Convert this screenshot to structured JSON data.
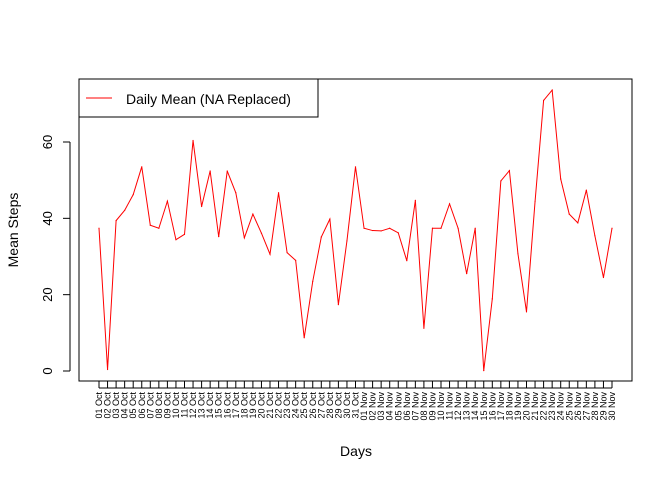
{
  "chart_data": {
    "type": "line",
    "title": "",
    "xlabel": "Days",
    "ylabel": "Mean Steps",
    "ylim": [
      0,
      73.6
    ],
    "yticks": [
      0,
      20,
      40,
      60
    ],
    "grid": false,
    "legend": {
      "position": "top-left",
      "entries": [
        {
          "label": "Daily Mean (NA Replaced)",
          "color": "#ff0000"
        }
      ]
    },
    "categories": [
      "01 Oct",
      "02 Oct",
      "03 Oct",
      "04 Oct",
      "05 Oct",
      "06 Oct",
      "07 Oct",
      "08 Oct",
      "09 Oct",
      "10 Oct",
      "11 Oct",
      "12 Oct",
      "13 Oct",
      "14 Oct",
      "15 Oct",
      "16 Oct",
      "17 Oct",
      "18 Oct",
      "19 Oct",
      "20 Oct",
      "21 Oct",
      "22 Oct",
      "23 Oct",
      "24 Oct",
      "25 Oct",
      "26 Oct",
      "27 Oct",
      "28 Oct",
      "29 Oct",
      "30 Oct",
      "31 Oct",
      "01 Nov",
      "02 Nov",
      "03 Nov",
      "04 Nov",
      "05 Nov",
      "06 Nov",
      "07 Nov",
      "08 Nov",
      "09 Nov",
      "10 Nov",
      "11 Nov",
      "12 Nov",
      "13 Nov",
      "14 Nov",
      "15 Nov",
      "16 Nov",
      "17 Nov",
      "18 Nov",
      "19 Nov",
      "20 Nov",
      "21 Nov",
      "22 Nov",
      "23 Nov",
      "24 Nov",
      "25 Nov",
      "26 Nov",
      "27 Nov",
      "28 Nov",
      "29 Nov",
      "30 Nov"
    ],
    "series": [
      {
        "name": "Daily Mean (NA Replaced)",
        "color": "#ff0000",
        "values": [
          37.4,
          0.4,
          39.4,
          42.1,
          46.2,
          53.5,
          38.2,
          37.4,
          44.5,
          34.4,
          35.8,
          60.4,
          43.1,
          52.4,
          35.2,
          52.4,
          46.7,
          34.9,
          41.1,
          36.1,
          30.6,
          46.7,
          31.0,
          29.0,
          8.7,
          23.5,
          35.1,
          39.8,
          17.4,
          34.1,
          53.5,
          37.4,
          36.8,
          36.7,
          37.4,
          36.2,
          28.9,
          44.7,
          11.2,
          37.4,
          37.4,
          43.8,
          37.4,
          25.5,
          37.4,
          0.1,
          18.9,
          49.8,
          52.5,
          30.7,
          15.5,
          44.4,
          70.9,
          73.6,
          50.3,
          41.1,
          38.8,
          47.4,
          35.4,
          24.5,
          37.4
        ]
      }
    ]
  }
}
